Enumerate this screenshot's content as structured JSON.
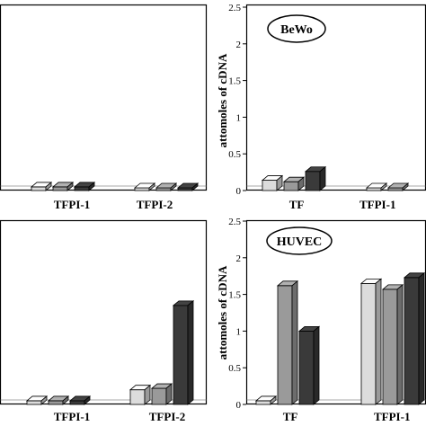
{
  "chart_data": [
    {
      "panel": "top-left",
      "type": "bar",
      "categories": [
        "TFPI-1",
        "TFPI-2"
      ],
      "series": [
        {
          "color": "#dcdcdc",
          "values": [
            0.05,
            0
          ]
        },
        {
          "color": "#9a9a9a",
          "values": [
            0.05,
            0
          ]
        },
        {
          "color": "#3a3a3a",
          "values": [
            0.05,
            0
          ]
        }
      ]
    },
    {
      "panel": "top-right",
      "type": "bar",
      "cell_label": "BeWo",
      "ylabel": "attomoles of cDNA",
      "ylim": [
        0,
        2.5
      ],
      "yticks": [
        "0",
        "0.5",
        "1",
        "1.5",
        "2",
        "2.5"
      ],
      "categories": [
        "TF",
        "TFPI-1"
      ],
      "series": [
        {
          "color": "#dcdcdc",
          "values": [
            0.14,
            0
          ]
        },
        {
          "color": "#9a9a9a",
          "values": [
            0.12,
            0
          ]
        },
        {
          "color": "#3a3a3a",
          "values": [
            0.26,
            0
          ]
        }
      ]
    },
    {
      "panel": "bottom-left",
      "type": "bar",
      "categories": [
        "TFPI-1",
        "TFPI-2"
      ],
      "series": [
        {
          "color": "#dcdcdc",
          "values": [
            0.05,
            0.2
          ]
        },
        {
          "color": "#9a9a9a",
          "values": [
            0.05,
            0.22
          ]
        },
        {
          "color": "#3a3a3a",
          "values": [
            0.05,
            1.35
          ]
        }
      ]
    },
    {
      "panel": "bottom-right",
      "type": "bar",
      "cell_label": "HUVEC",
      "ylabel": "attomoles of cDNA",
      "ylim": [
        0,
        2.5
      ],
      "yticks": [
        "0",
        "0.5",
        "1",
        "1.5",
        "2",
        "2.5"
      ],
      "categories": [
        "TF",
        "TFPI-1"
      ],
      "series": [
        {
          "color": "#dcdcdc",
          "values": [
            0.05,
            1.65
          ]
        },
        {
          "color": "#9a9a9a",
          "values": [
            1.62,
            1.57
          ]
        },
        {
          "color": "#3a3a3a",
          "values": [
            1.0,
            1.73
          ]
        }
      ]
    }
  ]
}
